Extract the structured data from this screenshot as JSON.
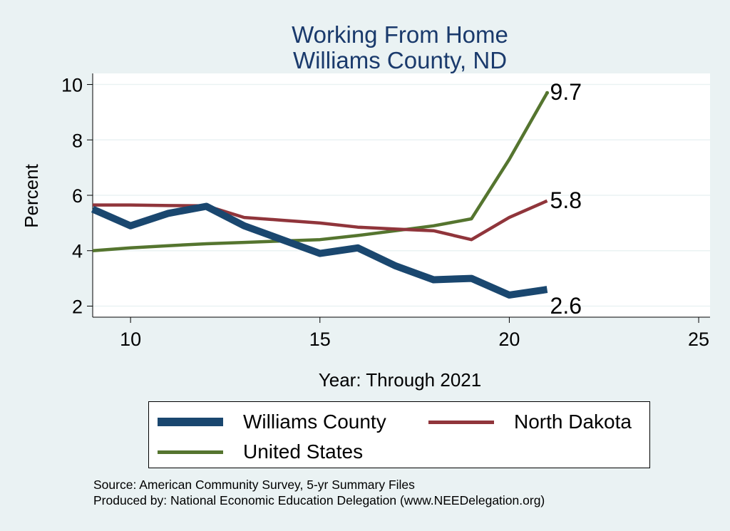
{
  "chart_data": {
    "type": "line",
    "title": "Working From Home",
    "subtitle": "Williams County, ND",
    "xlabel": "Year: Through 2021",
    "ylabel": "Percent",
    "xlim": [
      9,
      25.3
    ],
    "ylim": [
      1.6,
      10.4
    ],
    "xticks": [
      10,
      15,
      20,
      25
    ],
    "yticks": [
      2,
      4,
      6,
      8,
      10
    ],
    "grid": true,
    "legend_position": "bottom",
    "series": [
      {
        "name": "Williams County",
        "color": "#1a476f",
        "x": [
          9,
          10,
          11,
          12,
          13,
          14,
          15,
          16,
          17,
          18,
          19,
          20,
          21
        ],
        "y": [
          5.5,
          4.9,
          5.35,
          5.6,
          4.9,
          4.4,
          3.9,
          4.1,
          3.45,
          2.95,
          3.0,
          2.4,
          2.6
        ],
        "end_label": "2.6"
      },
      {
        "name": "North Dakota",
        "color": "#90353b",
        "x": [
          9,
          10,
          11,
          12,
          13,
          14,
          15,
          16,
          17,
          18,
          19,
          20,
          21
        ],
        "y": [
          5.65,
          5.65,
          5.63,
          5.62,
          5.2,
          5.1,
          5.0,
          4.85,
          4.78,
          4.72,
          4.4,
          5.2,
          5.8
        ],
        "end_label": "5.8"
      },
      {
        "name": "United States",
        "color": "#55752f",
        "x": [
          9,
          10,
          11,
          12,
          13,
          14,
          15,
          16,
          17,
          18,
          19,
          20,
          21
        ],
        "y": [
          4.0,
          4.1,
          4.18,
          4.25,
          4.3,
          4.35,
          4.4,
          4.55,
          4.72,
          4.9,
          5.15,
          7.3,
          9.7
        ],
        "end_label": "9.7"
      }
    ]
  },
  "notes": {
    "source": "Source: American Community Survey, 5-yr Summary Files",
    "produced": "Produced by: National Economic Education Delegation (www.NEEDelegation.org)"
  }
}
